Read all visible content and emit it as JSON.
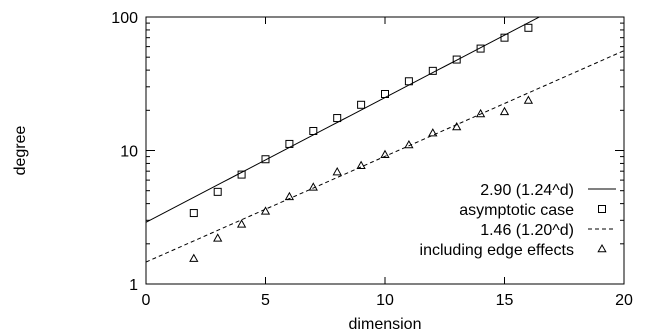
{
  "chart_data": {
    "type": "scatter",
    "xlabel": "dimension",
    "ylabel": "degree",
    "xlim": [
      0,
      20
    ],
    "ylim": [
      1,
      100
    ],
    "yscale": "log",
    "grid": false,
    "legend_position": "bottom-right",
    "x_ticks": [
      0,
      5,
      10,
      15,
      20
    ],
    "x_tick_labels": [
      "0",
      "5",
      "10",
      "15",
      "20"
    ],
    "y_ticks": [
      1,
      10,
      100
    ],
    "y_tick_labels": [
      "1",
      "10",
      "100"
    ],
    "series": [
      {
        "name": "2.90 (1.24^d)",
        "kind": "fit-line",
        "dash": "solid",
        "coef": 2.9,
        "base": 1.24
      },
      {
        "name": "asymptotic case",
        "kind": "points",
        "marker": "square",
        "x": [
          2,
          3,
          4,
          5,
          6,
          7,
          8,
          9,
          10,
          11,
          12,
          13,
          14,
          15,
          16
        ],
        "y": [
          3.4,
          4.9,
          6.6,
          8.6,
          11.2,
          14.0,
          17.5,
          22.0,
          26.5,
          33.0,
          39.5,
          48.0,
          58.0,
          70.0,
          83.0
        ]
      },
      {
        "name": "1.46 (1.20^d)",
        "kind": "fit-line",
        "dash": "dashed",
        "coef": 1.46,
        "base": 1.2
      },
      {
        "name": "including edge effects",
        "kind": "points",
        "marker": "triangle",
        "x": [
          2,
          3,
          4,
          5,
          6,
          7,
          8,
          9,
          10,
          11,
          12,
          13,
          14,
          15,
          16
        ],
        "y": [
          1.55,
          2.2,
          2.8,
          3.5,
          4.5,
          5.3,
          6.9,
          7.7,
          9.3,
          11.0,
          13.5,
          15.0,
          18.8,
          19.5,
          23.7
        ]
      }
    ]
  }
}
